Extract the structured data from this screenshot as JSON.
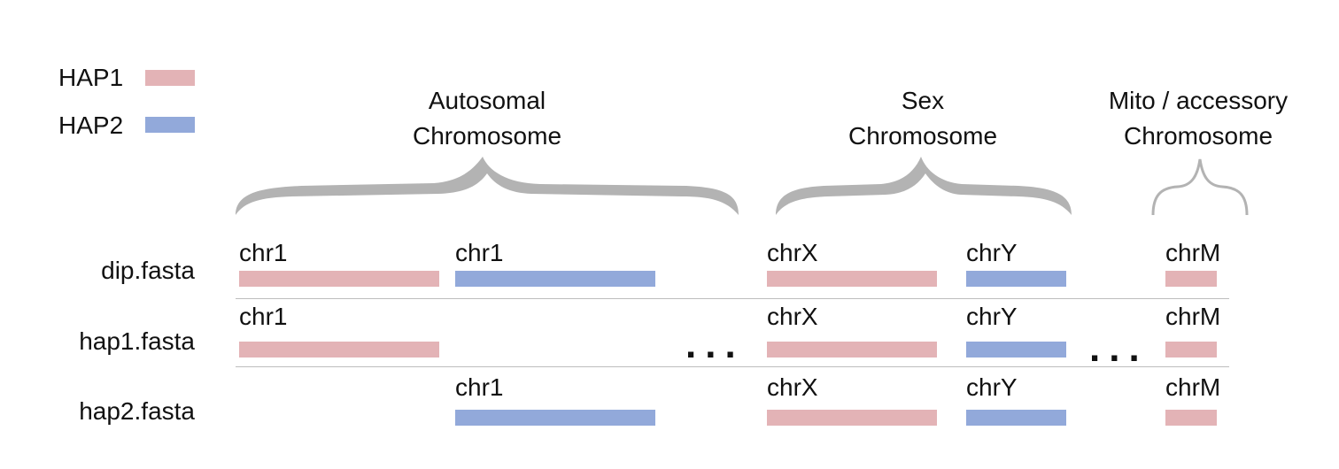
{
  "legend": {
    "hap1": {
      "label": "HAP1",
      "color": "#e3b3b6"
    },
    "hap2": {
      "label": "HAP2",
      "color": "#92a9da"
    }
  },
  "groups": {
    "autosomal": {
      "line1": "Autosomal",
      "line2": "Chromosome"
    },
    "sex": {
      "line1": "Sex",
      "line2": "Chromosome"
    },
    "mito": {
      "line1": "Mito / accessory",
      "line2": "Chromosome"
    }
  },
  "rows": {
    "dip": {
      "label": "dip.fasta",
      "chr": [
        "chr1",
        "chr1",
        "chrX",
        "chrY",
        "chrM"
      ]
    },
    "hap1": {
      "label": "hap1.fasta",
      "chr": [
        "chr1",
        "chrX",
        "chrY",
        "chrM"
      ]
    },
    "hap2": {
      "label": "hap2.fasta",
      "chr": [
        "chr1",
        "chrX",
        "chrY",
        "chrM"
      ]
    }
  },
  "ellipsis": "..."
}
